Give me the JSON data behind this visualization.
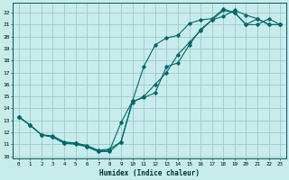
{
  "xlabel": "Humidex (Indice chaleur)",
  "bg_color": "#c8ecec",
  "grid_color": "#a0c8c8",
  "line_color": "#006868",
  "xlim": [
    -0.5,
    23.5
  ],
  "ylim": [
    9.8,
    22.8
  ],
  "xticks": [
    0,
    1,
    2,
    3,
    4,
    5,
    6,
    7,
    8,
    9,
    10,
    11,
    12,
    13,
    14,
    15,
    16,
    17,
    18,
    19,
    20,
    21,
    22,
    23
  ],
  "yticks": [
    10,
    11,
    12,
    13,
    14,
    15,
    16,
    17,
    18,
    19,
    20,
    21,
    22
  ],
  "curve1_x": [
    0,
    1,
    2,
    3,
    4,
    5,
    6,
    7,
    8,
    9,
    10,
    11,
    12,
    13,
    14,
    15,
    16,
    17,
    18,
    19,
    20,
    21,
    22,
    23
  ],
  "curve1_y": [
    13.3,
    12.6,
    11.8,
    11.6,
    11.1,
    11.1,
    10.8,
    10.4,
    10.5,
    12.8,
    14.6,
    17.5,
    19.3,
    19.9,
    20.1,
    21.1,
    21.4,
    21.5,
    22.3,
    22.0,
    21.0,
    21.5,
    21.0,
    21.0
  ],
  "curve2_x": [
    0,
    1,
    2,
    3,
    4,
    5,
    6,
    7,
    8,
    9,
    10,
    11,
    12,
    13,
    14,
    15,
    16,
    17,
    18,
    19,
    20,
    21,
    22,
    23
  ],
  "curve2_y": [
    13.3,
    12.6,
    11.8,
    11.6,
    11.1,
    11.0,
    10.8,
    10.4,
    10.4,
    11.2,
    14.6,
    14.9,
    15.3,
    17.5,
    17.8,
    19.3,
    20.6,
    21.4,
    22.2,
    22.0,
    21.0,
    21.0,
    21.5,
    21.0
  ],
  "curve3_x": [
    0,
    1,
    2,
    3,
    4,
    5,
    6,
    7,
    8,
    9,
    10,
    11,
    12,
    13,
    14,
    15,
    16,
    17,
    18,
    19,
    20,
    21,
    22,
    23
  ],
  "curve3_y": [
    13.3,
    12.6,
    11.8,
    11.7,
    11.2,
    11.1,
    10.9,
    10.5,
    10.6,
    11.2,
    14.5,
    15.0,
    16.0,
    17.0,
    18.5,
    19.5,
    20.5,
    21.4,
    21.7,
    22.2,
    21.8,
    21.5,
    21.0,
    21.0
  ]
}
